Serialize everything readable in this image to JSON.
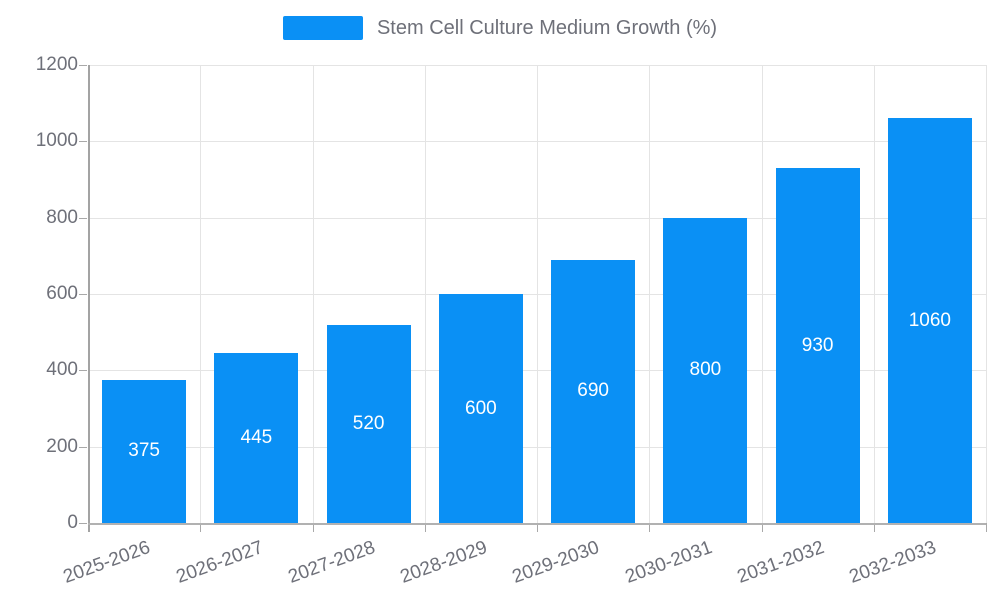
{
  "chart_data": {
    "type": "bar",
    "title": "",
    "legend": "Stem Cell Culture Medium Growth (%)",
    "legend_position": "top-center",
    "categories": [
      "2025-2026",
      "2026-2027",
      "2027-2028",
      "2028-2029",
      "2029-2030",
      "2030-2031",
      "2031-2032",
      "2032-2033"
    ],
    "values": [
      375,
      445,
      520,
      600,
      690,
      800,
      930,
      1060
    ],
    "value_labels": [
      "375",
      "445",
      "520",
      "600",
      "690",
      "800",
      "930",
      "1060"
    ],
    "xlabel": "",
    "ylabel": "",
    "ylim": [
      0,
      1200
    ],
    "yticks": [
      0,
      200,
      400,
      600,
      800,
      1000,
      1200
    ],
    "grid": true,
    "x_label_rotation_deg": -20,
    "colors": {
      "bar": "#0a90f5",
      "bar_value_text": "#ffffff",
      "axis_text": "#6e7079",
      "gridline": "#e4e4e4",
      "axis_line": "#a7a7a7"
    }
  }
}
